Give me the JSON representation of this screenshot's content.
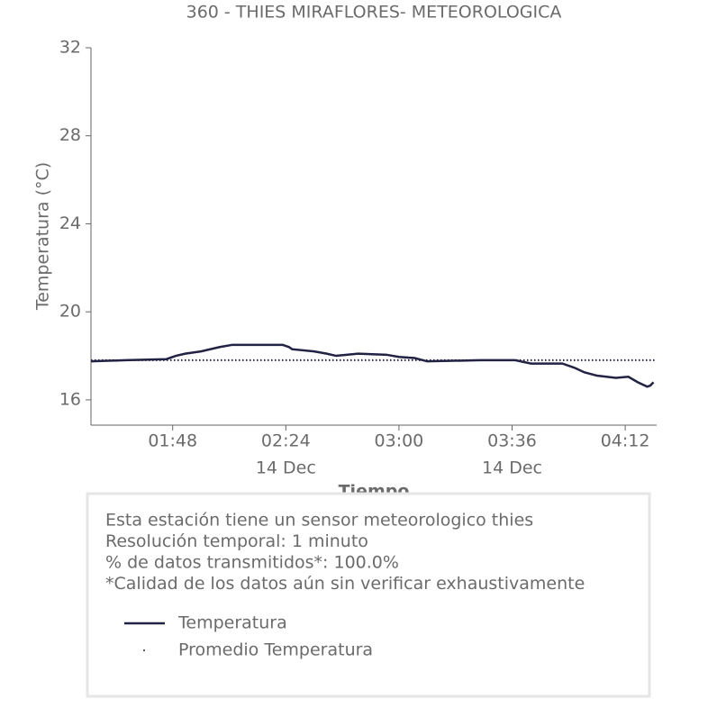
{
  "chart_data": {
    "type": "line",
    "title": "360 - THIES MIRAFLORES- METEOROLOGICA",
    "xlabel": "Tiempo",
    "ylabel": "Temperatura (°C)",
    "xlim": [
      "01:22",
      "04:22"
    ],
    "xticks": [
      "01:48",
      "02:24",
      "03:00",
      "03:36",
      "04:12"
    ],
    "xtick_sublabels": [
      null,
      "14 Dec",
      null,
      "14 Dec",
      null
    ],
    "ylim": [
      14.85,
      32
    ],
    "yticks": [
      16,
      20,
      24,
      28,
      32
    ],
    "series": [
      {
        "name": "Temperatura",
        "color": "#222244",
        "style": "solid",
        "x": [
          "01:22",
          "01:33",
          "01:46",
          "01:49",
          "01:52",
          "01:57",
          "02:03",
          "02:07",
          "02:23",
          "02:25",
          "02:26",
          "02:33",
          "02:37",
          "02:40",
          "02:47",
          "02:56",
          "03:00",
          "03:05",
          "03:09",
          "03:26",
          "03:37",
          "03:42",
          "03:52",
          "03:56",
          "03:59",
          "04:03",
          "04:09",
          "04:13",
          "04:16",
          "04:19",
          "04:20",
          "04:21"
        ],
        "values": [
          17.75,
          17.8,
          17.85,
          18.0,
          18.1,
          18.2,
          18.4,
          18.5,
          18.5,
          18.4,
          18.3,
          18.2,
          18.1,
          18.0,
          18.1,
          18.05,
          17.95,
          17.9,
          17.75,
          17.8,
          17.8,
          17.65,
          17.65,
          17.45,
          17.25,
          17.1,
          17.0,
          17.05,
          16.8,
          16.6,
          16.65,
          16.8
        ]
      },
      {
        "name": "Promedio Temperatura",
        "color": "#222244",
        "style": "dotted",
        "x": [
          "01:22",
          "04:22"
        ],
        "values": [
          17.8,
          17.8
        ]
      }
    ],
    "info": [
      "Esta estación tiene un sensor meteorologico thies",
      "Resolución temporal: 1 minuto",
      "% de datos transmitidos*: 100.0%",
      "*Calidad de los datos aún sin verificar exhaustivamente"
    ]
  }
}
